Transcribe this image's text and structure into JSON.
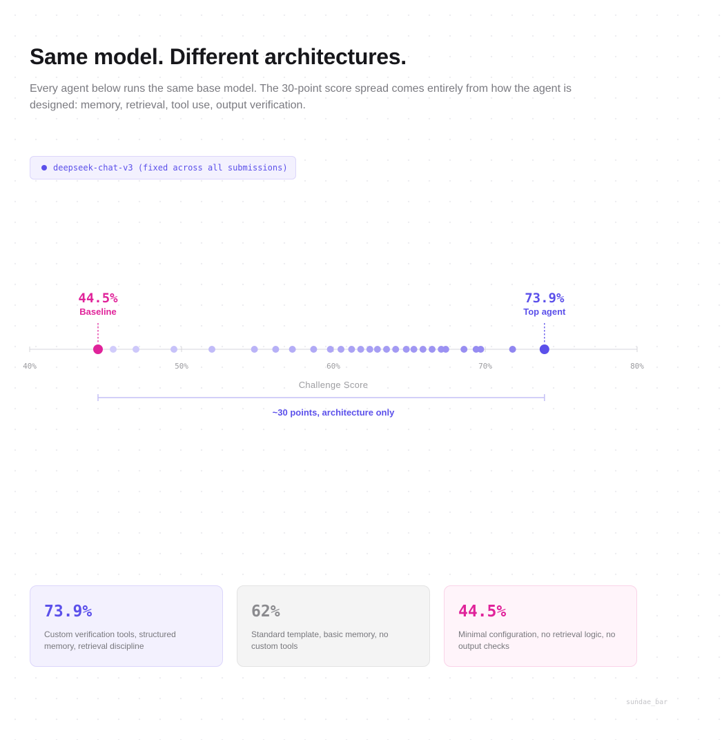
{
  "header": {
    "title": "Same model. Different architectures.",
    "subtitle": "Every agent below runs the same base model. The 30-point score spread comes entirely from how the agent is designed: memory, retrieval, tool use, output verification."
  },
  "model_badge": {
    "label": "deepseek-chat-v3 (fixed across all submissions)",
    "dot_color": "#5b50ea"
  },
  "chart_data": {
    "type": "scatter",
    "xlabel": "Challenge Score",
    "xlim": [
      40,
      80
    ],
    "x_ticks": [
      {
        "value": 40,
        "label": "40%"
      },
      {
        "value": 50,
        "label": "50%"
      },
      {
        "value": 60,
        "label": "60%"
      },
      {
        "value": 70,
        "label": "70%"
      },
      {
        "value": 80,
        "label": "80%"
      }
    ],
    "points": [
      44.5,
      45.5,
      47.0,
      49.5,
      52.0,
      54.8,
      56.2,
      57.3,
      58.7,
      59.8,
      60.5,
      61.2,
      61.8,
      62.4,
      62.9,
      63.5,
      64.1,
      64.8,
      65.3,
      65.9,
      66.5,
      67.1,
      67.4,
      68.6,
      69.4,
      69.7,
      71.8,
      73.9
    ],
    "highlights": [
      {
        "value": 44.5,
        "value_label": "44.5%",
        "label": "Baseline",
        "color": "#e0239a"
      },
      {
        "value": 73.9,
        "value_label": "73.9%",
        "label": "Top agent",
        "color": "#5b50ea"
      }
    ],
    "range_annotation": {
      "from": 44.5,
      "to": 73.9,
      "label": "~30 points, architecture only"
    },
    "colors": {
      "light": "#d3cffb",
      "dark": "#8b80ef",
      "axis": "#e4e4e8",
      "tick_text": "#9c9ca0"
    }
  },
  "cards": [
    {
      "value": "73.9%",
      "description": "Custom verification tools, structured memory, retrieval discipline"
    },
    {
      "value": "62%",
      "description": "Standard template, basic memory, no custom tools"
    },
    {
      "value": "44.5%",
      "description": "Minimal configuration, no retrieval logic, no output checks"
    }
  ],
  "footer": {
    "brand": "sundae_bar"
  }
}
